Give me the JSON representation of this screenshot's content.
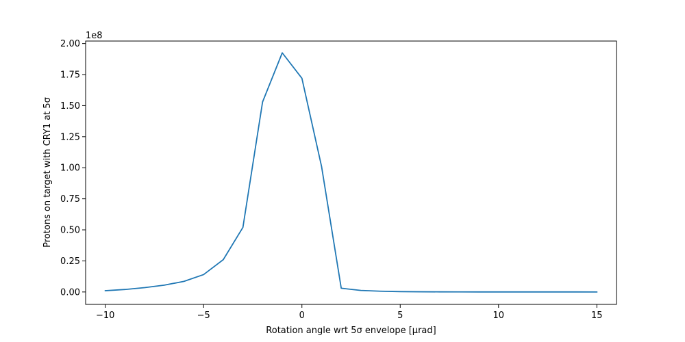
{
  "chart_data": {
    "type": "line",
    "title": "",
    "xlabel": "Rotation angle wrt 5σ envelope [μrad]",
    "ylabel": "Protons on target with CRY1 at 5σ",
    "y_offset_label": "1e8",
    "xlim": [
      -11,
      16
    ],
    "ylim": [
      -10000000,
      202000000
    ],
    "xticks": [
      -10,
      -5,
      0,
      5,
      10,
      15
    ],
    "xtick_labels": [
      "−10",
      "−5",
      "0",
      "5",
      "10",
      "15"
    ],
    "yticks": [
      0,
      25000000,
      50000000,
      75000000,
      100000000,
      125000000,
      150000000,
      175000000,
      200000000
    ],
    "ytick_labels": [
      "0.00",
      "0.25",
      "0.50",
      "0.75",
      "1.00",
      "1.25",
      "1.50",
      "1.75",
      "2.00"
    ],
    "grid": false,
    "series": [
      {
        "color": "#1f77b4",
        "x": [
          -10,
          -9,
          -8,
          -7,
          -6,
          -5,
          -4,
          -3,
          -2,
          -1,
          0,
          1,
          2,
          3,
          4,
          5,
          6,
          7,
          8,
          9,
          10,
          11,
          12,
          13,
          14,
          15
        ],
        "y": [
          1000000,
          2000000,
          3500000,
          5500000,
          8500000,
          14000000,
          26000000,
          52000000,
          153000000,
          192500000,
          172000000,
          101000000,
          3000000,
          1200000,
          600000,
          300000,
          150000,
          80000,
          50000,
          30000,
          20000,
          10000,
          8000,
          5000,
          3000,
          2000
        ]
      }
    ]
  }
}
